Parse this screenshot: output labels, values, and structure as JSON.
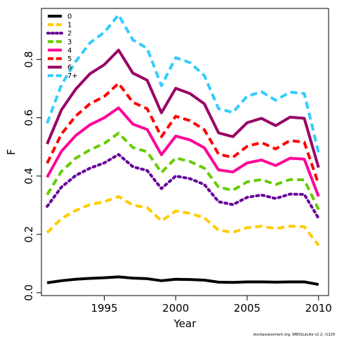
{
  "chart_data": {
    "type": "line",
    "xlabel": "Year",
    "ylabel": "F",
    "xlim": [
      1990.6,
      2010.7
    ],
    "ylim": [
      -0.01,
      0.975
    ],
    "xticks": [
      1995,
      2000,
      2005,
      2010
    ],
    "yticks": [
      0.0,
      0.2,
      0.4,
      0.6,
      0.8
    ],
    "ytick_labels": [
      "0.0",
      "0.2",
      "0.4",
      "0.6",
      "0.8"
    ],
    "legend_position": "top-left",
    "grid": false,
    "x": [
      1991,
      1992,
      1993,
      1994,
      1995,
      1996,
      1997,
      1998,
      1999,
      2000,
      2001,
      2002,
      2003,
      2004,
      2005,
      2006,
      2007,
      2008,
      2009,
      2010
    ],
    "series": [
      {
        "name": "0",
        "color": "#000000",
        "dash": "solid",
        "values": [
          0.034,
          0.041,
          0.046,
          0.049,
          0.051,
          0.054,
          0.05,
          0.048,
          0.041,
          0.046,
          0.045,
          0.043,
          0.036,
          0.035,
          0.037,
          0.037,
          0.036,
          0.037,
          0.037,
          0.028
        ]
      },
      {
        "name": "1",
        "color": "#FFCC00",
        "dash": "dashed",
        "values": [
          0.206,
          0.254,
          0.282,
          0.302,
          0.312,
          0.33,
          0.3,
          0.292,
          0.246,
          0.28,
          0.272,
          0.257,
          0.214,
          0.207,
          0.223,
          0.228,
          0.22,
          0.228,
          0.226,
          0.162
        ]
      },
      {
        "name": "2",
        "color": "#660099",
        "dash": "dotted",
        "values": [
          0.296,
          0.362,
          0.402,
          0.427,
          0.445,
          0.474,
          0.432,
          0.419,
          0.357,
          0.4,
          0.391,
          0.371,
          0.312,
          0.302,
          0.327,
          0.335,
          0.323,
          0.338,
          0.337,
          0.255
        ]
      },
      {
        "name": "3",
        "color": "#66CC00",
        "dash": "dashed",
        "values": [
          0.336,
          0.416,
          0.461,
          0.49,
          0.512,
          0.547,
          0.498,
          0.483,
          0.412,
          0.462,
          0.45,
          0.427,
          0.362,
          0.351,
          0.38,
          0.388,
          0.371,
          0.388,
          0.387,
          0.285
        ]
      },
      {
        "name": "4",
        "color": "#FF0099",
        "dash": "solid",
        "values": [
          0.396,
          0.485,
          0.539,
          0.576,
          0.6,
          0.634,
          0.578,
          0.56,
          0.473,
          0.537,
          0.524,
          0.497,
          0.421,
          0.414,
          0.445,
          0.455,
          0.436,
          0.461,
          0.458,
          0.33
        ]
      },
      {
        "name": "5",
        "color": "#FF0000",
        "dash": "dashed",
        "values": [
          0.444,
          0.544,
          0.606,
          0.648,
          0.673,
          0.718,
          0.653,
          0.631,
          0.535,
          0.605,
          0.59,
          0.559,
          0.475,
          0.464,
          0.502,
          0.515,
          0.493,
          0.522,
          0.516,
          0.372
        ]
      },
      {
        "name": "6",
        "color": "#990066",
        "dash": "solid",
        "values": [
          0.51,
          0.627,
          0.698,
          0.751,
          0.782,
          0.832,
          0.753,
          0.729,
          0.617,
          0.701,
          0.683,
          0.648,
          0.548,
          0.535,
          0.583,
          0.598,
          0.573,
          0.602,
          0.598,
          0.429
        ]
      },
      {
        "name": "7+",
        "color": "#33CCFF",
        "dash": "dashed",
        "values": [
          0.581,
          0.713,
          0.793,
          0.857,
          0.893,
          0.953,
          0.867,
          0.838,
          0.71,
          0.806,
          0.789,
          0.745,
          0.631,
          0.618,
          0.674,
          0.689,
          0.66,
          0.688,
          0.683,
          0.48
        ]
      }
    ]
  },
  "footer": {
    "credit": "stockassessment.org, WBSScaLike v2.2, r1229"
  }
}
